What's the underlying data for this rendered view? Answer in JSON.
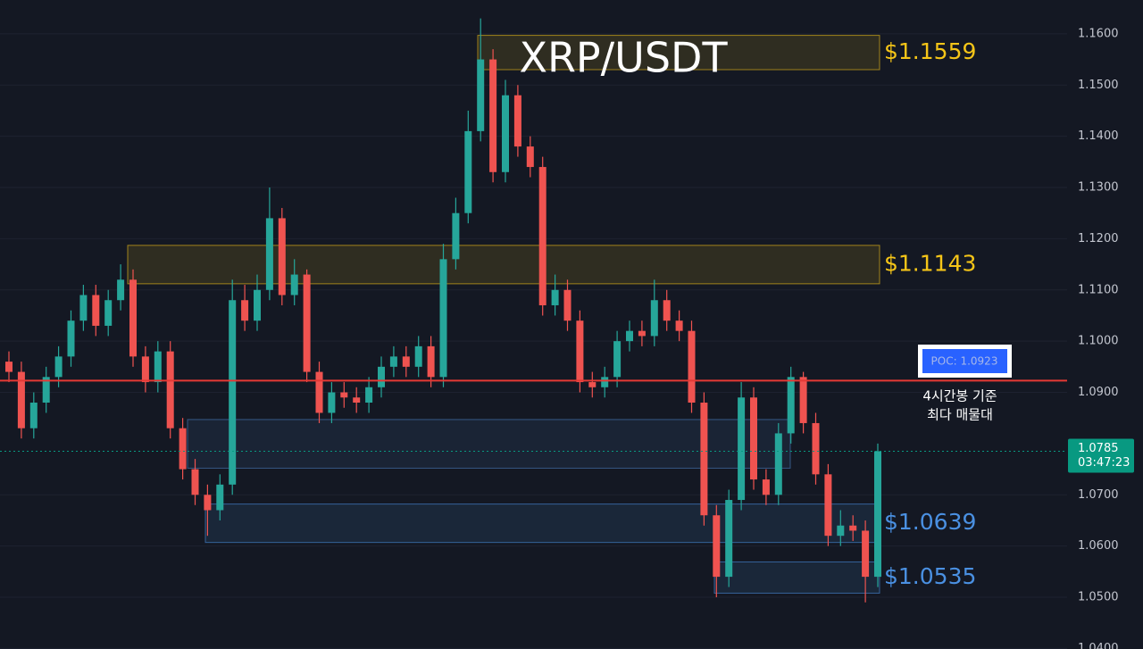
{
  "chart_data": {
    "type": "candlestick",
    "title": "XRP/USDT",
    "open": [
      1.096,
      1.094,
      1.083,
      1.088,
      1.093,
      1.097,
      1.104,
      1.109,
      1.103,
      1.108,
      1.112,
      1.097,
      1.092,
      1.098,
      1.083,
      1.075,
      1.07,
      1.067,
      1.072,
      1.108,
      1.104,
      1.11,
      1.124,
      1.109,
      1.113,
      1.094,
      1.086,
      1.09,
      1.089,
      1.088,
      1.091,
      1.095,
      1.097,
      1.095,
      1.099,
      1.093,
      1.116,
      1.125,
      1.141,
      1.155,
      1.133,
      1.148,
      1.138,
      1.134,
      1.107,
      1.11,
      1.104,
      1.092,
      1.091,
      1.093,
      1.1,
      1.102,
      1.101,
      1.108,
      1.104,
      1.102,
      1.088,
      1.066,
      1.054,
      1.069,
      1.089,
      1.073,
      1.07,
      1.082,
      1.093,
      1.084,
      1.074,
      1.062,
      1.064,
      1.063,
      1.054
    ],
    "high": [
      1.098,
      1.096,
      1.09,
      1.095,
      1.099,
      1.106,
      1.111,
      1.111,
      1.11,
      1.115,
      1.114,
      1.099,
      1.1,
      1.1,
      1.085,
      1.077,
      1.072,
      1.074,
      1.112,
      1.111,
      1.113,
      1.13,
      1.126,
      1.116,
      1.114,
      1.096,
      1.092,
      1.092,
      1.091,
      1.093,
      1.097,
      1.099,
      1.099,
      1.101,
      1.101,
      1.119,
      1.128,
      1.145,
      1.163,
      1.157,
      1.151,
      1.15,
      1.14,
      1.136,
      1.113,
      1.112,
      1.106,
      1.094,
      1.095,
      1.102,
      1.104,
      1.104,
      1.112,
      1.11,
      1.106,
      1.104,
      1.09,
      1.068,
      1.071,
      1.092,
      1.091,
      1.075,
      1.084,
      1.095,
      1.094,
      1.086,
      1.076,
      1.067,
      1.066,
      1.065,
      1.08
    ],
    "low": [
      1.092,
      1.081,
      1.081,
      1.086,
      1.091,
      1.095,
      1.102,
      1.101,
      1.101,
      1.106,
      1.095,
      1.09,
      1.09,
      1.081,
      1.073,
      1.068,
      1.062,
      1.065,
      1.07,
      1.102,
      1.102,
      1.108,
      1.107,
      1.107,
      1.092,
      1.084,
      1.084,
      1.087,
      1.086,
      1.086,
      1.089,
      1.093,
      1.093,
      1.093,
      1.091,
      1.091,
      1.114,
      1.123,
      1.139,
      1.131,
      1.131,
      1.136,
      1.132,
      1.105,
      1.105,
      1.102,
      1.09,
      1.089,
      1.089,
      1.091,
      1.098,
      1.099,
      1.099,
      1.102,
      1.1,
      1.086,
      1.064,
      1.05,
      1.052,
      1.067,
      1.071,
      1.068,
      1.068,
      1.08,
      1.082,
      1.072,
      1.06,
      1.06,
      1.061,
      1.049,
      1.052
    ],
    "close": [
      1.094,
      1.083,
      1.088,
      1.093,
      1.097,
      1.104,
      1.109,
      1.103,
      1.108,
      1.112,
      1.097,
      1.092,
      1.098,
      1.083,
      1.075,
      1.07,
      1.067,
      1.072,
      1.108,
      1.104,
      1.11,
      1.124,
      1.109,
      1.113,
      1.094,
      1.086,
      1.09,
      1.089,
      1.088,
      1.091,
      1.095,
      1.097,
      1.095,
      1.099,
      1.093,
      1.116,
      1.125,
      1.141,
      1.155,
      1.133,
      1.148,
      1.138,
      1.134,
      1.107,
      1.11,
      1.104,
      1.092,
      1.091,
      1.093,
      1.1,
      1.102,
      1.101,
      1.108,
      1.104,
      1.102,
      1.088,
      1.066,
      1.054,
      1.069,
      1.089,
      1.073,
      1.07,
      1.082,
      1.093,
      1.084,
      1.074,
      1.062,
      1.064,
      1.063,
      1.054,
      1.0785
    ],
    "up_color": "#26a69a",
    "down_color": "#ef5350",
    "ylim": [
      1.0399,
      1.1666
    ],
    "yticks": [
      {
        "value": 1.04,
        "label": "1.0400"
      },
      {
        "value": 1.05,
        "label": "1.0500"
      },
      {
        "value": 1.06,
        "label": "1.0600"
      },
      {
        "value": 1.07,
        "label": "1.0700"
      },
      {
        "value": 1.09,
        "label": "1.0900"
      },
      {
        "value": 1.1,
        "label": "1.1000"
      },
      {
        "value": 1.11,
        "label": "1.1100"
      },
      {
        "value": 1.12,
        "label": "1.1200"
      },
      {
        "value": 1.13,
        "label": "1.1300"
      },
      {
        "value": 1.14,
        "label": "1.1400"
      },
      {
        "value": 1.15,
        "label": "1.1500"
      },
      {
        "value": 1.16,
        "label": "1.1600"
      }
    ],
    "grid": true,
    "levels": [
      {
        "label": "$1.1559",
        "low": 1.153,
        "high": 1.1597,
        "color": "#f5c518"
      },
      {
        "label": "$1.1143",
        "low": 1.1112,
        "high": 1.1187,
        "color": "#f5c518"
      },
      {
        "low": 1.0752,
        "high": 1.0847,
        "color": "#4a7fc0"
      },
      {
        "label": "$1.0639",
        "low": 1.0607,
        "high": 1.0682,
        "color": "#4a90e2"
      },
      {
        "label": "$1.0535",
        "low": 1.0508,
        "high": 1.0569,
        "color": "#4a90e2"
      }
    ],
    "poc": {
      "value": 1.0923,
      "label": "POC: 1.0923",
      "color": "#e53935"
    },
    "annotation": [
      "4시간봉 기준",
      "최다 매물대"
    ],
    "last_price": {
      "value": 1.0785,
      "countdown": "03:47:23",
      "color": "#089981"
    }
  }
}
